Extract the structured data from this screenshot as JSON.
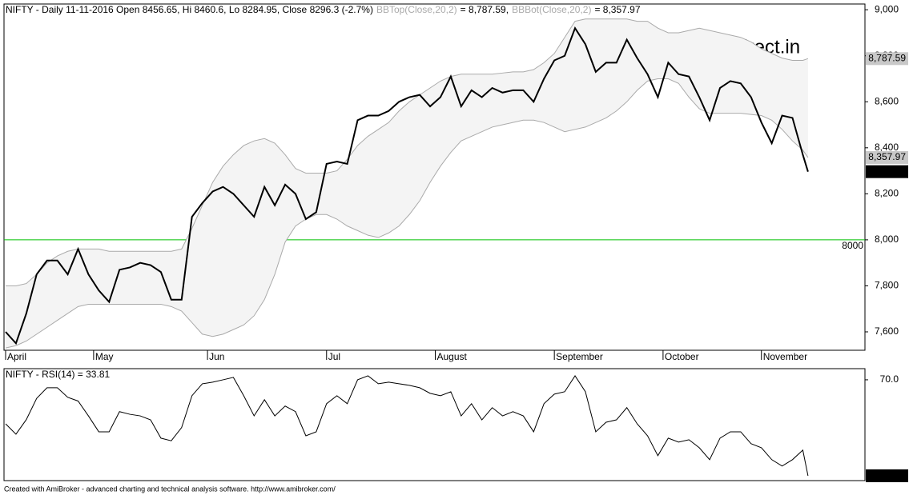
{
  "chart_data": [
    {
      "type": "line",
      "title": "NIFTY - Daily 11-11-2016 Open 8456.65, Hi 8460.6, Lo 8284.95, Close 8296.3 (-2.7%)",
      "watermark": "direct.in",
      "x": [
        0,
        2,
        4,
        6,
        8,
        10,
        12,
        14,
        16,
        18,
        20,
        22,
        24,
        26,
        28,
        30,
        32,
        34,
        36,
        38,
        40,
        42,
        44,
        46,
        48,
        50,
        52,
        54,
        56,
        58,
        60,
        62,
        64,
        66,
        68,
        70,
        72,
        74,
        76,
        78,
        80,
        82,
        84,
        86,
        88,
        90,
        92,
        94,
        96,
        98,
        100,
        102,
        104,
        106,
        108,
        110,
        112,
        114,
        116,
        118,
        120,
        122,
        124,
        126,
        128,
        130,
        132,
        134,
        136,
        138,
        140,
        142,
        144,
        146,
        148,
        150,
        152,
        154,
        155
      ],
      "xlim": [
        0,
        166
      ],
      "xticks": [
        {
          "value": 0,
          "label": "April"
        },
        {
          "value": 17,
          "label": "May"
        },
        {
          "value": 39,
          "label": "Jun"
        },
        {
          "value": 62,
          "label": "Jul"
        },
        {
          "value": 83,
          "label": "August"
        },
        {
          "value": 106,
          "label": "September"
        },
        {
          "value": 127,
          "label": "October"
        },
        {
          "value": 146,
          "label": "November"
        }
      ],
      "ylim": [
        7520,
        9025
      ],
      "yticks": [
        {
          "value": 7600,
          "label": "7,600"
        },
        {
          "value": 7800,
          "label": "7,800"
        },
        {
          "value": 8000,
          "label": "8,000"
        },
        {
          "value": 8200,
          "label": "8,200"
        },
        {
          "value": 8400,
          "label": "8,400"
        },
        {
          "value": 8600,
          "label": "8,600"
        },
        {
          "value": 8800,
          "label": "8,800"
        },
        {
          "value": 9000,
          "label": "9,000"
        }
      ],
      "hlines": [
        {
          "value": 8000,
          "color": "#00c000"
        }
      ],
      "band_fill": "#f4f4f4",
      "series": [
        {
          "name": "BBTop(Close,20,2)",
          "legend_value": "= 8,787.59,",
          "color": "#aaaaaa",
          "last_value_label": "8,787.59",
          "values": [
            7800,
            7800,
            7810,
            7850,
            7900,
            7930,
            7950,
            7960,
            7960,
            7960,
            7950,
            7950,
            7950,
            7950,
            7950,
            7950,
            7950,
            7960,
            8050,
            8150,
            8250,
            8320,
            8370,
            8410,
            8430,
            8440,
            8420,
            8370,
            8310,
            8290,
            8290,
            8290,
            8300,
            8350,
            8410,
            8450,
            8480,
            8510,
            8560,
            8600,
            8630,
            8660,
            8690,
            8710,
            8720,
            8720,
            8720,
            8720,
            8725,
            8730,
            8730,
            8740,
            8770,
            8810,
            8880,
            8950,
            8960,
            8960,
            8960,
            8960,
            8960,
            8950,
            8950,
            8920,
            8900,
            8900,
            8910,
            8920,
            8910,
            8900,
            8890,
            8880,
            8860,
            8830,
            8810,
            8790,
            8780,
            8780,
            8787.59
          ]
        },
        {
          "name": "BBBot(Close,20,2)",
          "legend_value": "= 8,357.97",
          "color": "#aaaaaa",
          "last_value_label": "8,357.97",
          "values": [
            7530,
            7540,
            7560,
            7590,
            7620,
            7650,
            7680,
            7710,
            7720,
            7720,
            7720,
            7720,
            7720,
            7720,
            7720,
            7720,
            7710,
            7690,
            7640,
            7590,
            7580,
            7590,
            7610,
            7630,
            7670,
            7740,
            7850,
            7990,
            8060,
            8090,
            8110,
            8110,
            8090,
            8060,
            8040,
            8020,
            8010,
            8030,
            8060,
            8110,
            8170,
            8250,
            8320,
            8380,
            8430,
            8450,
            8470,
            8490,
            8500,
            8510,
            8520,
            8520,
            8510,
            8490,
            8470,
            8480,
            8490,
            8510,
            8530,
            8560,
            8600,
            8650,
            8690,
            8700,
            8700,
            8680,
            8620,
            8570,
            8550,
            8550,
            8550,
            8550,
            8545,
            8540,
            8520,
            8480,
            8430,
            8390,
            8357.97
          ]
        },
        {
          "color": "#000000",
          "last_value_label": "8,296.3",
          "values": [
            7600,
            7550,
            7680,
            7850,
            7910,
            7910,
            7850,
            7960,
            7850,
            7780,
            7730,
            7870,
            7880,
            7900,
            7890,
            7860,
            7740,
            7740,
            8100,
            8160,
            8210,
            8230,
            8200,
            8150,
            8100,
            8230,
            8150,
            8240,
            8200,
            8090,
            8120,
            8330,
            8340,
            8330,
            8520,
            8540,
            8540,
            8560,
            8600,
            8620,
            8630,
            8580,
            8620,
            8710,
            8580,
            8650,
            8620,
            8660,
            8640,
            8650,
            8650,
            8600,
            8700,
            8780,
            8800,
            8920,
            8850,
            8730,
            8770,
            8770,
            8870,
            8790,
            8720,
            8620,
            8770,
            8720,
            8710,
            8620,
            8520,
            8660,
            8690,
            8680,
            8620,
            8510,
            8420,
            8540,
            8530,
            8370,
            8296.3
          ]
        }
      ]
    },
    {
      "type": "line",
      "title": "NIFTY - RSI(14) = 33.81",
      "ylim": [
        32,
        74.2
      ],
      "yticks": [
        {
          "value": 70,
          "label": "70.0"
        }
      ],
      "series": [
        {
          "color": "#000000",
          "last_value_label": "33.8137",
          "values": [
            53.4,
            49.5,
            55,
            63,
            67,
            67,
            63.4,
            62,
            56.4,
            50.4,
            50.4,
            58,
            57,
            56.4,
            54.9,
            48,
            47,
            52,
            64,
            68.5,
            69.1,
            70,
            70.9,
            64,
            56.4,
            62.5,
            56.4,
            60.1,
            58,
            48.9,
            50.4,
            61,
            64,
            61,
            70,
            71.5,
            68.5,
            69.1,
            68.5,
            67.9,
            67,
            64.9,
            64,
            65.5,
            56.4,
            61,
            54.9,
            59.5,
            56.4,
            58,
            56.4,
            50.4,
            61,
            64.6,
            65.5,
            71.5,
            65.5,
            50.4,
            54,
            54.9,
            59.5,
            53.4,
            48.9,
            41.4,
            48,
            46.5,
            47.4,
            44.4,
            39.9,
            48,
            50.4,
            50.4,
            45.9,
            44.4,
            39.9,
            37.5,
            39.9,
            43.5,
            33.8137
          ]
        }
      ]
    }
  ],
  "footer": "Created with AmiBroker - advanced charting and technical analysis software. http://www.amibroker.com/"
}
